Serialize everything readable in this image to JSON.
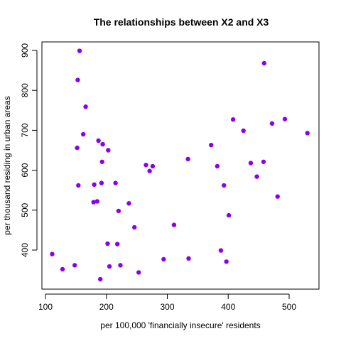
{
  "chart_data": {
    "type": "scatter",
    "title": "The relationships between X2 and X3",
    "xlabel": "per 100,000 'financially insecure' residents",
    "ylabel": "per thousand residing in urban areas",
    "xlim": [
      100,
      540
    ],
    "ylim": [
      318,
      915
    ],
    "xticks": [
      100,
      200,
      300,
      400,
      500
    ],
    "yticks": [
      400,
      500,
      600,
      700,
      800,
      900
    ],
    "grid": false,
    "legend": "none",
    "point_color": "#8B00EE",
    "x": [
      111,
      128,
      148,
      152,
      153,
      154,
      156,
      162,
      166,
      179,
      180,
      185,
      187,
      190,
      192,
      193,
      194,
      202,
      203,
      205,
      215,
      218,
      220,
      223,
      237,
      246,
      253,
      265,
      271,
      276,
      294,
      311,
      334,
      335,
      372,
      382,
      388,
      393,
      397,
      401,
      408,
      425,
      437,
      447,
      458,
      459,
      472,
      481,
      493,
      530
    ],
    "y": [
      390,
      352,
      362,
      656,
      826,
      562,
      899,
      690,
      759,
      520,
      564,
      522,
      674,
      327,
      568,
      621,
      665,
      416,
      650,
      359,
      568,
      415,
      498,
      362,
      517,
      457,
      344,
      613,
      598,
      610,
      377,
      463,
      628,
      379,
      663,
      610,
      399,
      562,
      371,
      487,
      727,
      699,
      618,
      584,
      621,
      868,
      717,
      534,
      728,
      693
    ]
  }
}
